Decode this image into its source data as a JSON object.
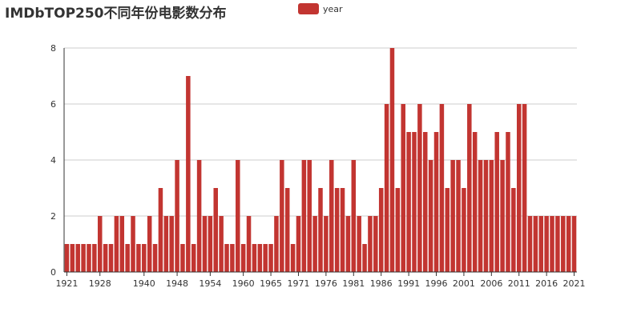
{
  "colors": {
    "bar": "#c23531",
    "axis": "#333333",
    "grid": "#cccccc",
    "title": "#333333"
  },
  "chart_data": {
    "type": "bar",
    "title": "IMDbTOP250不同年份电影数分布",
    "legend": {
      "entries": [
        "year"
      ],
      "placement": "top-center"
    },
    "grid": true,
    "ylim": [
      0,
      8
    ],
    "yticks": [
      "0",
      "2",
      "4",
      "6",
      "8"
    ],
    "xtick_labels": [
      "1921",
      "1928",
      "1940",
      "1948",
      "1954",
      "1960",
      "1965",
      "1971",
      "1976",
      "1981",
      "1986",
      "1991",
      "1996",
      "2001",
      "2006",
      "2011",
      "2016",
      "2021"
    ],
    "series": [
      {
        "name": "year",
        "categories": [
          "1921",
          "1922",
          "1924",
          "1925",
          "1926",
          "1927",
          "1928",
          "1930",
          "1931",
          "1934",
          "1936",
          "1937",
          "1938",
          "1939",
          "1940",
          "1941",
          "1942",
          "1943",
          "1944",
          "1946",
          "1948",
          "1949",
          "1950",
          "1951",
          "1952",
          "1953",
          "1954",
          "1955",
          "1956",
          "1957",
          "1958",
          "1959",
          "1960",
          "1961",
          "1962",
          "1963",
          "1964",
          "1965",
          "1966",
          "1967",
          "1968",
          "1970",
          "1971",
          "1972",
          "1973",
          "1974",
          "1975",
          "1976",
          "1977",
          "1978",
          "1979",
          "1980",
          "1981",
          "1982",
          "1983",
          "1984",
          "1985",
          "1986",
          "1987",
          "1988",
          "1989",
          "1990",
          "1991",
          "1992",
          "1993",
          "1994",
          "1995",
          "1996",
          "1997",
          "1998",
          "1999",
          "2000",
          "2001",
          "2002",
          "2003",
          "2004",
          "2005",
          "2006",
          "2007",
          "2008",
          "2009",
          "2010",
          "2011",
          "2012",
          "2013",
          "2014",
          "2015",
          "2016",
          "2017",
          "2018",
          "2019",
          "2020",
          "2021"
        ],
        "values": [
          1,
          1,
          1,
          1,
          1,
          1,
          2,
          1,
          1,
          2,
          2,
          1,
          2,
          1,
          1,
          2,
          1,
          3,
          2,
          2,
          4,
          1,
          7,
          1,
          4,
          2,
          2,
          3,
          2,
          1,
          1,
          4,
          1,
          2,
          1,
          1,
          1,
          1,
          2,
          4,
          3,
          1,
          2,
          4,
          4,
          2,
          3,
          2,
          4,
          3,
          3,
          2,
          4,
          2,
          1,
          2,
          2,
          3,
          6,
          8,
          3,
          6,
          5,
          5,
          6,
          5,
          4,
          5,
          6,
          3,
          4,
          4,
          3,
          6,
          5,
          4,
          4,
          4,
          5,
          4,
          5,
          3,
          6,
          6,
          2,
          2,
          2,
          2,
          2,
          2,
          2,
          2,
          2
        ]
      }
    ]
  }
}
